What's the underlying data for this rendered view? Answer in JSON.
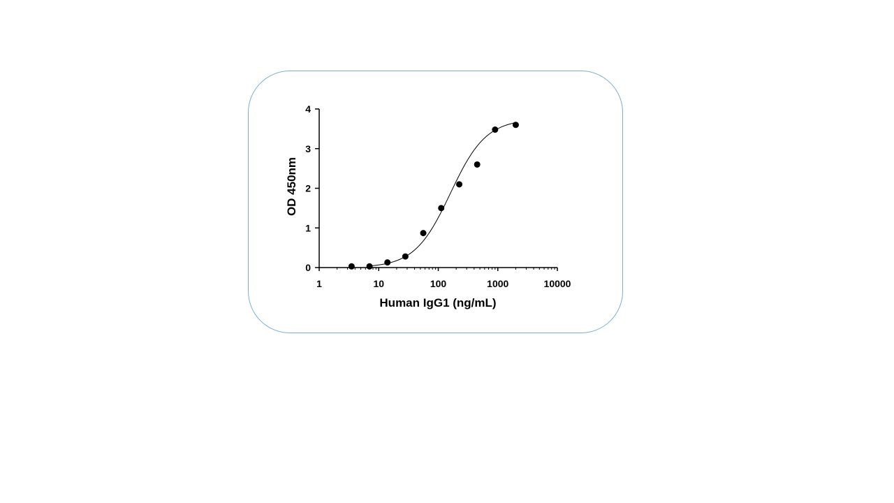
{
  "chart_data": {
    "type": "scatter",
    "xlabel": "Human IgG1 (ng/mL)",
    "ylabel": "OD 450nm",
    "xscale": "log",
    "xlim": [
      1,
      10000
    ],
    "ylim": [
      0,
      4
    ],
    "x_ticks": [
      1,
      10,
      100,
      1000,
      10000
    ],
    "x_tick_labels": [
      "1",
      "10",
      "100",
      "1000",
      "10000"
    ],
    "y_ticks": [
      0,
      1,
      2,
      3,
      4
    ],
    "y_tick_labels": [
      "0",
      "1",
      "2",
      "3",
      "4"
    ],
    "grid": false,
    "series": [
      {
        "marker": "circle",
        "x": [
          3.5,
          7,
          14,
          28,
          56,
          112,
          225,
          450,
          900,
          2000
        ],
        "y": [
          0.03,
          0.03,
          0.13,
          0.28,
          0.87,
          1.5,
          2.1,
          2.6,
          3.48,
          3.6
        ]
      }
    ],
    "fit_curve": {
      "model": "4PL",
      "bottom": 0,
      "top": 3.75,
      "ec50": 160,
      "hill": 1.45,
      "x_range": [
        7,
        2000
      ]
    },
    "colors": {
      "marker": "#000000",
      "axis": "#000000",
      "card_border": "#7aaed4"
    }
  }
}
